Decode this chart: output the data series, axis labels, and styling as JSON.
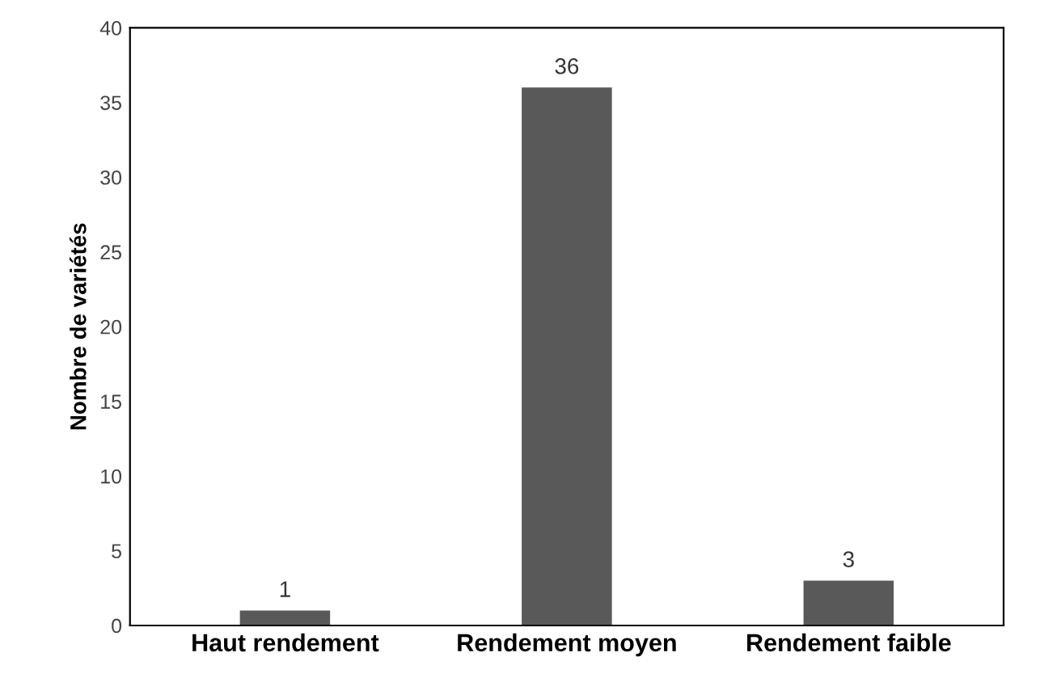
{
  "chart_data": {
    "type": "bar",
    "ylabel": "Nombre de variétés",
    "categories": [
      "Haut rendement",
      "Rendement moyen",
      "Rendement faible"
    ],
    "values": [
      1,
      36,
      3
    ],
    "color": "#595959",
    "ylim": [
      0,
      40
    ],
    "yticks": [
      0,
      5,
      10,
      15,
      20,
      25,
      30,
      35,
      40
    ],
    "data_labels": true,
    "grid": false,
    "legend": false
  }
}
